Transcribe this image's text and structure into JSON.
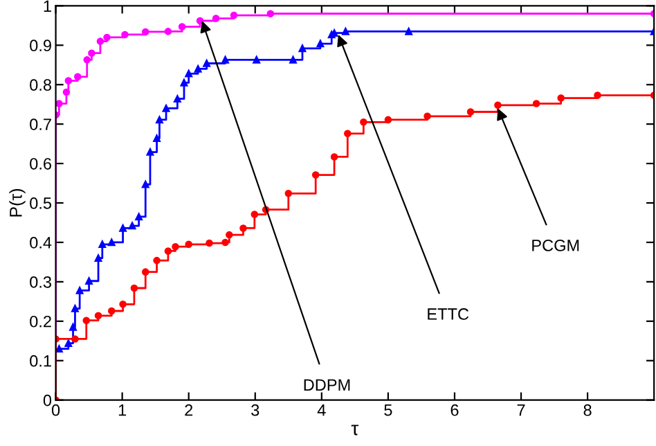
{
  "chart_data": {
    "type": "step",
    "xlabel": "τ",
    "ylabel": "P(τ)",
    "xlim": [
      0,
      9
    ],
    "xticks": [
      0,
      1,
      2,
      3,
      4,
      5,
      6,
      7,
      8
    ],
    "ylim": [
      0,
      1
    ],
    "yticks": [
      0,
      0.1,
      0.2,
      0.3,
      0.4,
      0.5,
      0.6,
      0.7,
      0.8,
      0.9,
      1
    ],
    "grid": false,
    "line_style": "solid",
    "annotations": [
      {
        "text": "DDPM",
        "x": 2.2,
        "y": 0.962
      },
      {
        "text": "ETTC",
        "x": 4.25,
        "y": 0.927
      },
      {
        "text": "PCGM",
        "x": 6.65,
        "y": 0.74
      }
    ],
    "series": [
      {
        "color": "#ff00ff",
        "marker": "circle",
        "x": [
          0,
          0,
          0.05,
          0.16,
          0.19,
          0.33,
          0.47,
          0.54,
          0.67,
          0.77,
          1.04,
          1.35,
          1.69,
          1.9,
          2.17,
          2.41,
          2.68,
          3.23,
          9
        ],
        "values": [
          0,
          0.723,
          0.752,
          0.781,
          0.81,
          0.82,
          0.863,
          0.88,
          0.91,
          0.92,
          0.927,
          0.934,
          0.935,
          0.947,
          0.962,
          0.968,
          0.976,
          0.98,
          0.98
        ]
      },
      {
        "color": "#0000ff",
        "marker": "triangle",
        "x": [
          0.05,
          0.19,
          0.26,
          0.29,
          0.36,
          0.5,
          0.64,
          0.7,
          0.84,
          1.01,
          1.15,
          1.25,
          1.35,
          1.42,
          1.52,
          1.56,
          1.66,
          1.83,
          1.93,
          2.0,
          2.14,
          2.27,
          2.55,
          3.02,
          3.57,
          3.71,
          3.98,
          4.15,
          4.19,
          4.36,
          5.31,
          9
        ],
        "values": [
          0.13,
          0.144,
          0.185,
          0.232,
          0.278,
          0.302,
          0.36,
          0.395,
          0.4,
          0.436,
          0.442,
          0.465,
          0.547,
          0.629,
          0.664,
          0.711,
          0.74,
          0.764,
          0.805,
          0.828,
          0.84,
          0.854,
          0.863,
          0.863,
          0.863,
          0.892,
          0.904,
          0.927,
          0.931,
          0.935,
          0.935,
          0.935
        ]
      },
      {
        "color": "#ff0000",
        "marker": "circle",
        "x": [
          0,
          0,
          0.29,
          0.46,
          0.64,
          0.84,
          1.01,
          1.18,
          1.35,
          1.52,
          1.69,
          1.8,
          2.0,
          2.31,
          2.55,
          2.61,
          2.82,
          2.99,
          3.16,
          3.5,
          3.91,
          4.19,
          4.39,
          4.63,
          5.0,
          5.59,
          6.24,
          6.65,
          7.23,
          7.6,
          8.15,
          9
        ],
        "values": [
          0,
          0.155,
          0.155,
          0.202,
          0.214,
          0.226,
          0.243,
          0.284,
          0.325,
          0.354,
          0.378,
          0.389,
          0.395,
          0.398,
          0.4,
          0.419,
          0.436,
          0.471,
          0.483,
          0.524,
          0.571,
          0.617,
          0.676,
          0.705,
          0.711,
          0.72,
          0.731,
          0.748,
          0.752,
          0.766,
          0.773,
          0.773
        ]
      }
    ]
  }
}
